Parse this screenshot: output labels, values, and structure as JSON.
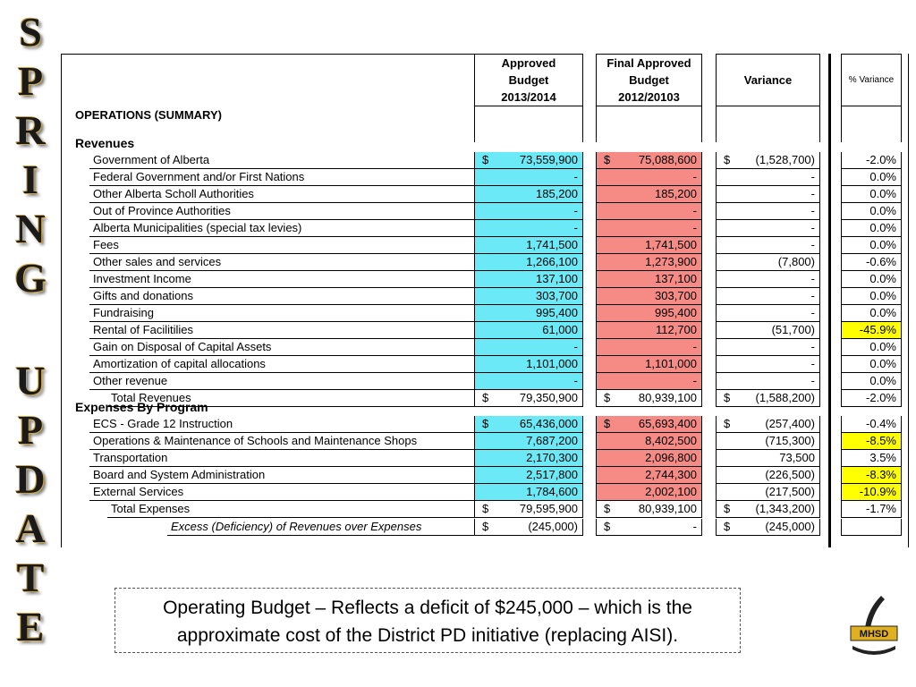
{
  "sidebar": [
    "SPRING",
    "UPDATE"
  ],
  "currency_symbol": "$",
  "header": {
    "columns": [
      [
        "Approved",
        "Budget",
        "2013/2014"
      ],
      [
        "Final Approved",
        "Budget",
        "2012/20103"
      ],
      [
        "Variance"
      ],
      [
        "% Variance"
      ]
    ]
  },
  "table": {
    "title": "OPERATIONS (SUMMARY)",
    "sections": [
      {
        "title": "Revenues",
        "rows": [
          {
            "label": "Government of Alberta",
            "approved": "73,559,900",
            "final": "75,088,600",
            "variance": "(1,528,700)",
            "pct": "-2.0%",
            "dollar": true
          },
          {
            "label": "Federal Government and/or First Nations",
            "approved": "-",
            "final": "-",
            "variance": "-",
            "pct": "0.0%"
          },
          {
            "label": "Other Alberta Scholl Authorities",
            "approved": "185,200",
            "final": "185,200",
            "variance": "-",
            "pct": "0.0%"
          },
          {
            "label": "Out of Province Authorities",
            "approved": "-",
            "final": "-",
            "variance": "-",
            "pct": "0.0%"
          },
          {
            "label": "Alberta Municipalities (special tax levies)",
            "approved": "-",
            "final": "-",
            "variance": "-",
            "pct": "0.0%"
          },
          {
            "label": "Fees",
            "approved": "1,741,500",
            "final": "1,741,500",
            "variance": "-",
            "pct": "0.0%"
          },
          {
            "label": "Other sales and services",
            "approved": "1,266,100",
            "final": "1,273,900",
            "variance": "(7,800)",
            "pct": "-0.6%"
          },
          {
            "label": "Investment Income",
            "approved": "137,100",
            "final": "137,100",
            "variance": "-",
            "pct": "0.0%"
          },
          {
            "label": "Gifts and donations",
            "approved": "303,700",
            "final": "303,700",
            "variance": "-",
            "pct": "0.0%"
          },
          {
            "label": "Fundraising",
            "approved": "995,400",
            "final": "995,400",
            "variance": "-",
            "pct": "0.0%"
          },
          {
            "label": "Rental of Facilitilies",
            "approved": "61,000",
            "final": "112,700",
            "variance": "(51,700)",
            "pct": "-45.9%",
            "highlight": true
          },
          {
            "label": "Gain on Disposal of Capital Assets",
            "approved": "-",
            "final": "-",
            "variance": "-",
            "pct": "0.0%"
          },
          {
            "label": "Amortization of capital allocations",
            "approved": "1,101,000",
            "final": "1,101,000",
            "variance": "-",
            "pct": "0.0%"
          },
          {
            "label": "Other revenue",
            "approved": "-",
            "final": "-",
            "variance": "-",
            "pct": "0.0%"
          }
        ],
        "total": {
          "label": "Total Revenues",
          "approved": "79,350,900",
          "final": "80,939,100",
          "variance": "(1,588,200)",
          "pct": "-2.0%",
          "dollar": true
        }
      },
      {
        "title": "Expenses By Program",
        "rows": [
          {
            "label": "ECS - Grade 12 Instruction",
            "approved": "65,436,000",
            "final": "65,693,400",
            "variance": "(257,400)",
            "pct": "-0.4%",
            "dollar": true
          },
          {
            "label": "Operations & Maintenance of Schools and Maintenance Shops",
            "approved": "7,687,200",
            "final": "8,402,500",
            "variance": "(715,300)",
            "pct": "-8.5%",
            "highlight": true
          },
          {
            "label": "Transportation",
            "approved": "2,170,300",
            "final": "2,096,800",
            "variance": "73,500",
            "pct": "3.5%"
          },
          {
            "label": "Board and System Administration",
            "approved": "2,517,800",
            "final": "2,744,300",
            "variance": "(226,500)",
            "pct": "-8.3%",
            "highlight": true
          },
          {
            "label": "External Services",
            "approved": "1,784,600",
            "final": "2,002,100",
            "variance": "(217,500)",
            "pct": "-10.9%",
            "highlight": true
          }
        ],
        "total": {
          "label": "Total Expenses",
          "approved": "79,595,900",
          "final": "80,939,100",
          "variance": "(1,343,200)",
          "pct": "-1.7%",
          "dollar": true
        }
      }
    ],
    "excess": {
      "label": "Excess (Deficiency) of Revenues over Expenses",
      "approved": "(245,000)",
      "final": "-",
      "variance": "(245,000)",
      "dollar": true
    }
  },
  "note": [
    "Operating Budget – Reflects a deficit of $245,000 – which is the",
    "approximate cost of the District PD initiative (replacing AISI)."
  ],
  "logo_text": "MHSD"
}
